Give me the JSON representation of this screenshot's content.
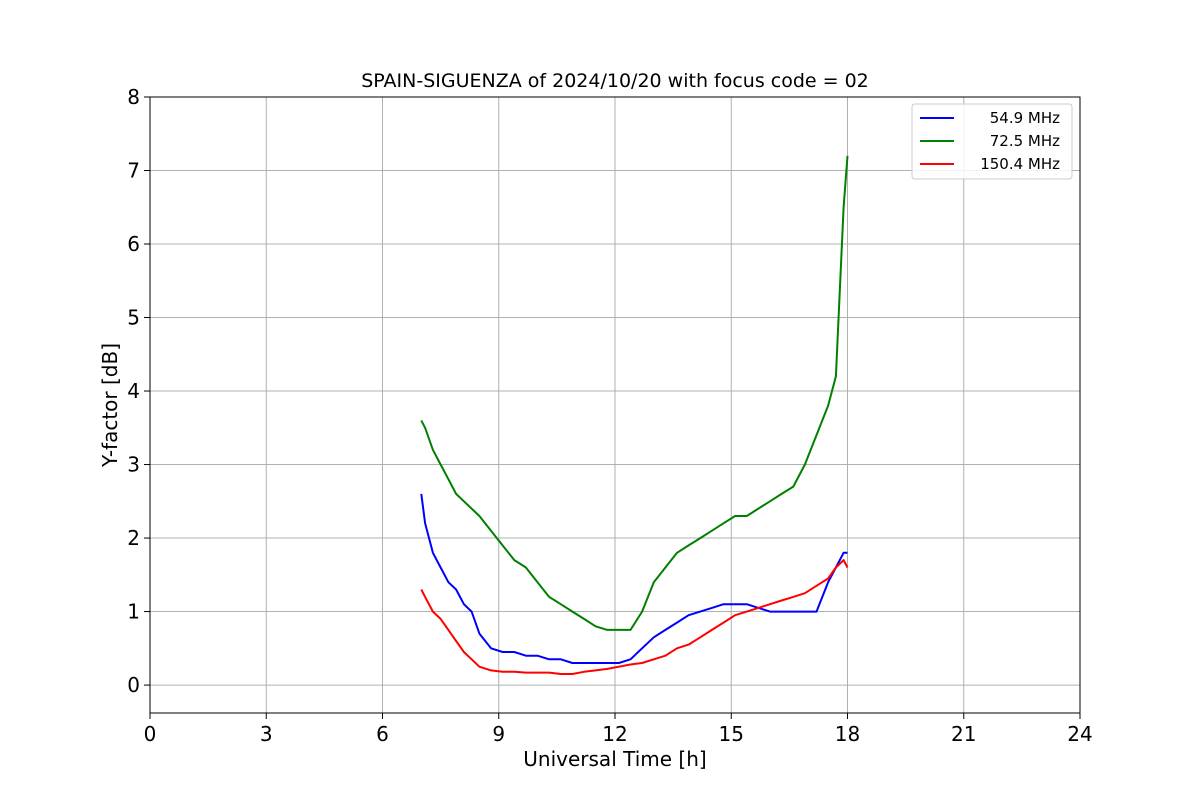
{
  "chart_data": {
    "type": "line",
    "title": "SPAIN-SIGUENZA of 2024/10/20 with focus code = 02",
    "xlabel": "Universal Time [h]",
    "ylabel": "Y-factor [dB]",
    "xlim": [
      0,
      24
    ],
    "ylim": [
      -0.38,
      8
    ],
    "xticks": [
      "0",
      "3",
      "6",
      "9",
      "12",
      "15",
      "18",
      "21",
      "24"
    ],
    "yticks": [
      "0",
      "1",
      "2",
      "3",
      "4",
      "5",
      "6",
      "7",
      "8"
    ],
    "grid": true,
    "legend_position": "top-right",
    "series": [
      {
        "name": "54.9 MHz",
        "color": "#0000ff",
        "x": [
          7.0,
          7.1,
          7.3,
          7.5,
          7.7,
          7.9,
          8.1,
          8.3,
          8.5,
          8.8,
          9.1,
          9.4,
          9.7,
          10.0,
          10.3,
          10.6,
          10.9,
          11.2,
          11.5,
          11.8,
          12.1,
          12.4,
          12.7,
          13.0,
          13.3,
          13.6,
          13.9,
          14.2,
          14.5,
          14.8,
          15.1,
          15.4,
          15.7,
          16.0,
          16.3,
          16.6,
          16.9,
          17.2,
          17.5,
          17.7,
          17.9,
          18.0
        ],
        "y": [
          2.6,
          2.2,
          1.8,
          1.6,
          1.4,
          1.3,
          1.1,
          1.0,
          0.7,
          0.5,
          0.45,
          0.45,
          0.4,
          0.4,
          0.35,
          0.35,
          0.3,
          0.3,
          0.3,
          0.3,
          0.3,
          0.35,
          0.5,
          0.65,
          0.75,
          0.85,
          0.95,
          1.0,
          1.05,
          1.1,
          1.1,
          1.1,
          1.05,
          1.0,
          1.0,
          1.0,
          1.0,
          1.0,
          1.4,
          1.6,
          1.8,
          1.8
        ]
      },
      {
        "name": "72.5 MHz",
        "color": "#008000",
        "x": [
          7.0,
          7.1,
          7.3,
          7.5,
          7.7,
          7.9,
          8.1,
          8.3,
          8.5,
          8.8,
          9.1,
          9.4,
          9.7,
          10.0,
          10.3,
          10.6,
          10.9,
          11.2,
          11.5,
          11.8,
          12.1,
          12.4,
          12.7,
          13.0,
          13.3,
          13.6,
          13.9,
          14.2,
          14.5,
          14.8,
          15.1,
          15.4,
          15.7,
          16.0,
          16.3,
          16.6,
          16.9,
          17.2,
          17.5,
          17.7,
          17.9,
          18.0
        ],
        "y": [
          3.6,
          3.5,
          3.2,
          3.0,
          2.8,
          2.6,
          2.5,
          2.4,
          2.3,
          2.1,
          1.9,
          1.7,
          1.6,
          1.4,
          1.2,
          1.1,
          1.0,
          0.9,
          0.8,
          0.75,
          0.75,
          0.75,
          1.0,
          1.4,
          1.6,
          1.8,
          1.9,
          2.0,
          2.1,
          2.2,
          2.3,
          2.3,
          2.4,
          2.5,
          2.6,
          2.7,
          3.0,
          3.4,
          3.8,
          4.2,
          6.5,
          7.2
        ]
      },
      {
        "name": "150.4 MHz",
        "color": "#ff0000",
        "x": [
          7.0,
          7.1,
          7.3,
          7.5,
          7.7,
          7.9,
          8.1,
          8.3,
          8.5,
          8.8,
          9.1,
          9.4,
          9.7,
          10.0,
          10.3,
          10.6,
          10.9,
          11.2,
          11.5,
          11.8,
          12.1,
          12.4,
          12.7,
          13.0,
          13.3,
          13.6,
          13.9,
          14.2,
          14.5,
          14.8,
          15.1,
          15.4,
          15.7,
          16.0,
          16.3,
          16.6,
          16.9,
          17.2,
          17.5,
          17.7,
          17.9,
          18.0
        ],
        "y": [
          1.3,
          1.2,
          1.0,
          0.9,
          0.75,
          0.6,
          0.45,
          0.35,
          0.25,
          0.2,
          0.18,
          0.18,
          0.17,
          0.17,
          0.17,
          0.15,
          0.15,
          0.18,
          0.2,
          0.22,
          0.25,
          0.28,
          0.3,
          0.35,
          0.4,
          0.5,
          0.55,
          0.65,
          0.75,
          0.85,
          0.95,
          1.0,
          1.05,
          1.1,
          1.15,
          1.2,
          1.25,
          1.35,
          1.45,
          1.6,
          1.7,
          1.6
        ]
      }
    ]
  }
}
